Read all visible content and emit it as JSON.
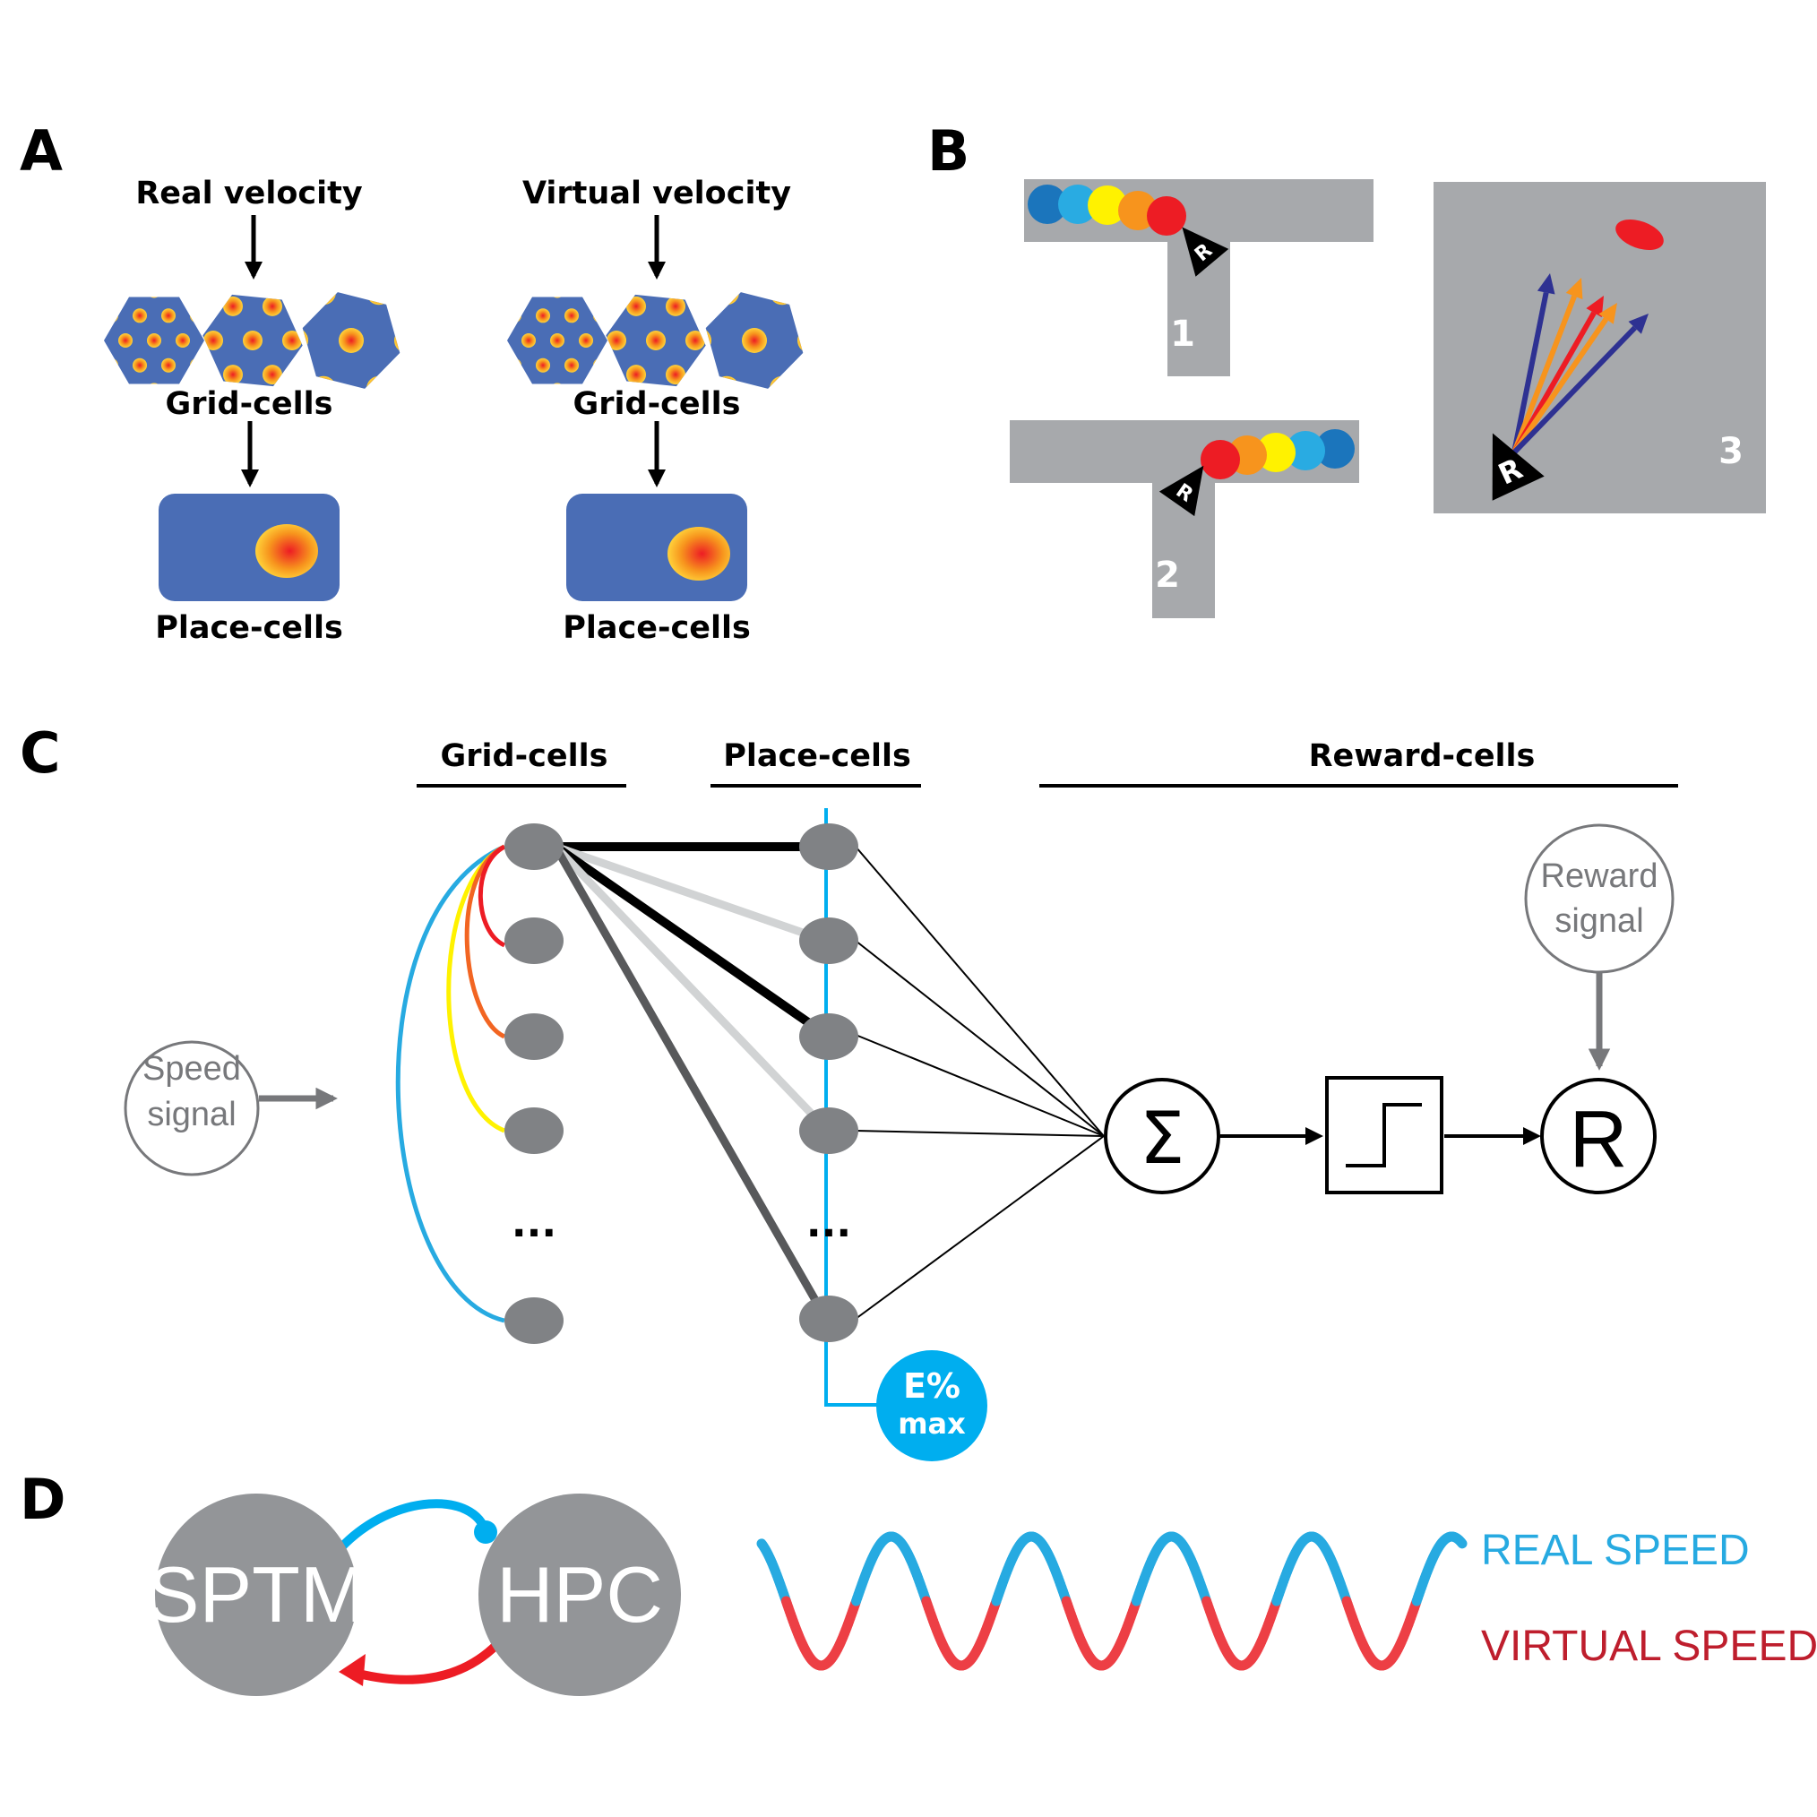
{
  "colors": {
    "blue": "#4a6db5",
    "cyan": "#00aeef",
    "red": "#ed1c24",
    "orange": "#f7941d",
    "yellow": "#fff200",
    "navy": "#2e3192",
    "gray": "#a7a9ac",
    "node": "#808285",
    "dark_circle": "#939598"
  },
  "panel_a": {
    "letter": "A",
    "columns": [
      {
        "input_label": "Real velocity",
        "grid_label": "Grid-cells",
        "place_label": "Place-cells"
      },
      {
        "input_label": "Virtual velocity",
        "grid_label": "Grid-cells",
        "place_label": "Place-cells"
      }
    ]
  },
  "panel_b": {
    "letter": "B",
    "tracks": [
      {
        "number": "1",
        "agent_label": "R"
      },
      {
        "number": "2",
        "agent_label": "R"
      },
      {
        "number": "3",
        "agent_label": "R"
      }
    ]
  },
  "panel_c": {
    "letter": "C",
    "header_grid": "Grid-cells",
    "header_place": "Place-cells",
    "header_reward": "Reward-cells",
    "speed_signal": [
      "Speed",
      "signal"
    ],
    "reward_signal": [
      "Reward",
      "signal"
    ],
    "ellipsis": "...",
    "sum_symbol": "Σ",
    "reward_node": "R",
    "emax_line1": "E%",
    "emax_line2": "max"
  },
  "panel_d": {
    "letter": "D",
    "left_node": "SPTM",
    "right_node": "HPC",
    "legend_real": "REAL SPEED",
    "legend_virtual": "VIRTUAL SPEED",
    "legend_real_color": "#27aae1",
    "legend_virtual_color": "#be1e2d"
  }
}
